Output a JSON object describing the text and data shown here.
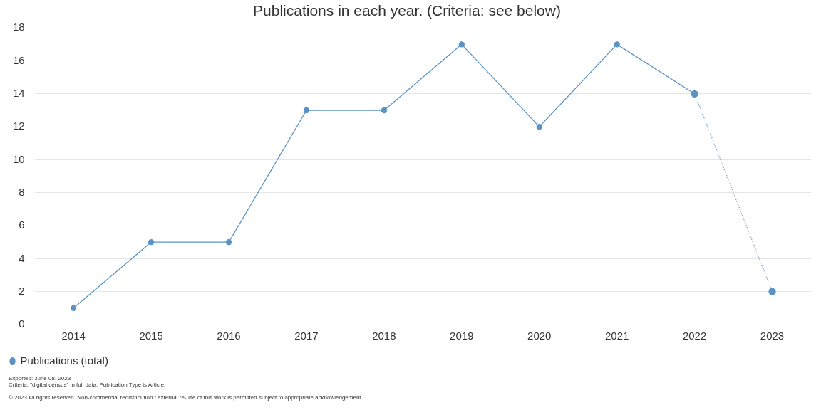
{
  "chart_data": {
    "type": "line",
    "title": "Publications in each year. (Criteria: see below)",
    "categories": [
      "2014",
      "2015",
      "2016",
      "2017",
      "2018",
      "2019",
      "2020",
      "2021",
      "2022",
      "2023"
    ],
    "series": [
      {
        "name": "Publications (total)",
        "color": "#5b93c6",
        "values": [
          1,
          5,
          5,
          13,
          13,
          17,
          12,
          17,
          14,
          null
        ],
        "line_style": "solid"
      },
      {
        "color": "#5b93c6",
        "values": [
          null,
          null,
          null,
          null,
          null,
          null,
          null,
          null,
          14,
          2
        ],
        "line_style": "dotted"
      }
    ],
    "ylim": [
      0,
      18
    ],
    "yticks": [
      0,
      2,
      4,
      6,
      8,
      10,
      12,
      14,
      16,
      18
    ],
    "grid": "y",
    "legend": "bottom left",
    "marker": "circle",
    "annotations": [
      "Exported: June 08, 2023",
      "Criteria: \"digital census\" in full data; Publication Type is Article.",
      "© 2023 All rights reserved. Non-commercial redistribution / external re-use of this work is permitted subject to appropriate acknowledgement."
    ]
  }
}
